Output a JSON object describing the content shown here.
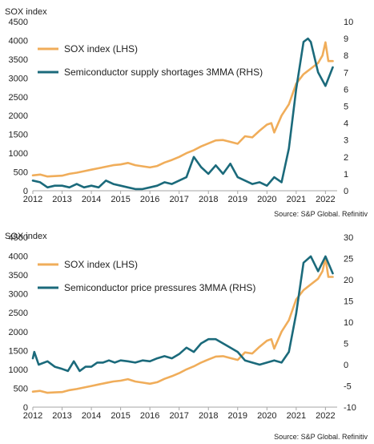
{
  "colors": {
    "sox": "#f0ad5a",
    "rhs": "#1b6a7b"
  },
  "chart_data": [
    {
      "type": "line",
      "ylabel": "SOX index",
      "source": "Source: S&P Global. Refinitiv",
      "xlim": [
        2012,
        2022.4
      ],
      "x_ticks": [
        "2012",
        "2013",
        "2014",
        "2015",
        "2016",
        "2017",
        "2018",
        "2019",
        "2020",
        "2021",
        "2022"
      ],
      "y_left": {
        "range": [
          0,
          4500
        ],
        "ticks": [
          "0",
          "500",
          "1000",
          "1500",
          "2000",
          "2500",
          "3000",
          "3500",
          "4000",
          "4500"
        ]
      },
      "y_right": {
        "range": [
          0,
          10
        ],
        "ticks": [
          "0",
          "1",
          "2",
          "3",
          "4",
          "5",
          "6",
          "7",
          "8",
          "9",
          "10"
        ]
      },
      "legend_position": "top-left",
      "series": [
        {
          "name": "SOX index (LHS)",
          "axis": "left",
          "color": "#f0ad5a",
          "x": [
            2012.0,
            2012.25,
            2012.5,
            2012.75,
            2013.0,
            2013.25,
            2013.5,
            2013.75,
            2014.0,
            2014.25,
            2014.5,
            2014.75,
            2015.0,
            2015.25,
            2015.5,
            2015.75,
            2016.0,
            2016.25,
            2016.5,
            2016.75,
            2017.0,
            2017.25,
            2017.5,
            2017.75,
            2018.0,
            2018.25,
            2018.5,
            2018.75,
            2019.0,
            2019.25,
            2019.5,
            2019.75,
            2020.0,
            2020.15,
            2020.25,
            2020.5,
            2020.75,
            2021.0,
            2021.25,
            2021.5,
            2021.75,
            2021.9,
            2022.0,
            2022.1,
            2022.25
          ],
          "y": [
            410,
            430,
            380,
            390,
            400,
            450,
            480,
            520,
            560,
            600,
            640,
            680,
            700,
            740,
            680,
            650,
            620,
            660,
            750,
            820,
            900,
            1000,
            1080,
            1180,
            1260,
            1340,
            1350,
            1300,
            1250,
            1450,
            1420,
            1600,
            1760,
            1800,
            1550,
            2000,
            2300,
            2850,
            3100,
            3250,
            3400,
            3600,
            3950,
            3450,
            3450
          ]
        },
        {
          "name": "Semiconductor supply shortages 3MMA (RHS)",
          "axis": "right",
          "color": "#1b6a7b",
          "x": [
            2012.0,
            2012.25,
            2012.5,
            2012.75,
            2013.0,
            2013.25,
            2013.5,
            2013.75,
            2014.0,
            2014.25,
            2014.5,
            2014.75,
            2015.0,
            2015.25,
            2015.5,
            2015.75,
            2016.0,
            2016.25,
            2016.5,
            2016.75,
            2017.0,
            2017.25,
            2017.5,
            2017.75,
            2018.0,
            2018.25,
            2018.5,
            2018.75,
            2019.0,
            2019.25,
            2019.5,
            2019.75,
            2020.0,
            2020.25,
            2020.5,
            2020.75,
            2021.0,
            2021.25,
            2021.4,
            2021.5,
            2021.75,
            2022.0,
            2022.25
          ],
          "y": [
            0.6,
            0.5,
            0.2,
            0.3,
            0.3,
            0.2,
            0.4,
            0.2,
            0.3,
            0.2,
            0.6,
            0.4,
            0.3,
            0.2,
            0.1,
            0.1,
            0.2,
            0.3,
            0.5,
            0.4,
            0.6,
            0.8,
            2.0,
            1.4,
            1.0,
            1.5,
            1.0,
            1.6,
            0.8,
            0.6,
            0.4,
            0.5,
            0.3,
            0.8,
            0.5,
            2.5,
            6.0,
            8.8,
            9.0,
            8.8,
            7.0,
            6.2,
            7.3
          ]
        }
      ]
    },
    {
      "type": "line",
      "ylabel": "SOX index",
      "source": "Source: S&P Global. Refinitiv",
      "xlim": [
        2012,
        2022.4
      ],
      "x_ticks": [
        "2012",
        "2013",
        "2014",
        "2015",
        "2016",
        "2017",
        "2018",
        "2019",
        "2020",
        "2021",
        "2022"
      ],
      "y_left": {
        "range": [
          0,
          4500
        ],
        "ticks": [
          "0",
          "500",
          "1000",
          "1500",
          "2000",
          "2500",
          "3000",
          "3500",
          "4000",
          "4500"
        ]
      },
      "y_right": {
        "range": [
          -10,
          30
        ],
        "ticks": [
          "-10",
          "-5",
          "0",
          "5",
          "10",
          "15",
          "20",
          "25",
          "30"
        ]
      },
      "legend_position": "top-left",
      "series": [
        {
          "name": "SOX index (LHS)",
          "axis": "left",
          "color": "#f0ad5a",
          "x": [
            2012.0,
            2012.25,
            2012.5,
            2012.75,
            2013.0,
            2013.25,
            2013.5,
            2013.75,
            2014.0,
            2014.25,
            2014.5,
            2014.75,
            2015.0,
            2015.25,
            2015.5,
            2015.75,
            2016.0,
            2016.25,
            2016.5,
            2016.75,
            2017.0,
            2017.25,
            2017.5,
            2017.75,
            2018.0,
            2018.25,
            2018.5,
            2018.75,
            2019.0,
            2019.25,
            2019.5,
            2019.75,
            2020.0,
            2020.15,
            2020.25,
            2020.5,
            2020.75,
            2021.0,
            2021.25,
            2021.5,
            2021.75,
            2021.9,
            2022.0,
            2022.1,
            2022.25
          ],
          "y": [
            410,
            430,
            380,
            390,
            400,
            450,
            480,
            520,
            560,
            600,
            640,
            680,
            700,
            740,
            680,
            650,
            620,
            660,
            750,
            820,
            900,
            1000,
            1080,
            1180,
            1260,
            1340,
            1350,
            1300,
            1250,
            1450,
            1420,
            1600,
            1760,
            1800,
            1550,
            2000,
            2300,
            2850,
            3100,
            3250,
            3400,
            3600,
            3950,
            3450,
            3450
          ]
        },
        {
          "name": "Semiconductor price pressures 3MMA (RHS)",
          "axis": "right",
          "color": "#1b6a7b",
          "x": [
            2012.0,
            2012.05,
            2012.2,
            2012.5,
            2012.75,
            2013.0,
            2013.2,
            2013.4,
            2013.6,
            2013.8,
            2014.0,
            2014.2,
            2014.4,
            2014.6,
            2014.8,
            2015.0,
            2015.25,
            2015.5,
            2015.75,
            2016.0,
            2016.25,
            2016.5,
            2016.75,
            2017.0,
            2017.25,
            2017.5,
            2017.75,
            2018.0,
            2018.25,
            2018.5,
            2018.75,
            2019.0,
            2019.25,
            2019.5,
            2019.75,
            2020.0,
            2020.25,
            2020.5,
            2020.75,
            2021.0,
            2021.25,
            2021.5,
            2021.75,
            2022.0,
            2022.25
          ],
          "y": [
            1.5,
            3.0,
            0.0,
            0.8,
            -0.5,
            -1.0,
            -1.5,
            0.8,
            -1.5,
            -0.5,
            -0.5,
            0.5,
            0.5,
            1.0,
            0.5,
            1.0,
            0.8,
            0.5,
            1.0,
            0.8,
            1.5,
            2.0,
            1.5,
            2.5,
            4.0,
            3.0,
            5.0,
            6.0,
            6.0,
            5.0,
            4.0,
            3.0,
            1.0,
            0.5,
            0.0,
            0.5,
            1.0,
            0.5,
            3.0,
            12.0,
            24.0,
            25.5,
            22.0,
            25.5,
            21.5
          ]
        }
      ]
    }
  ]
}
